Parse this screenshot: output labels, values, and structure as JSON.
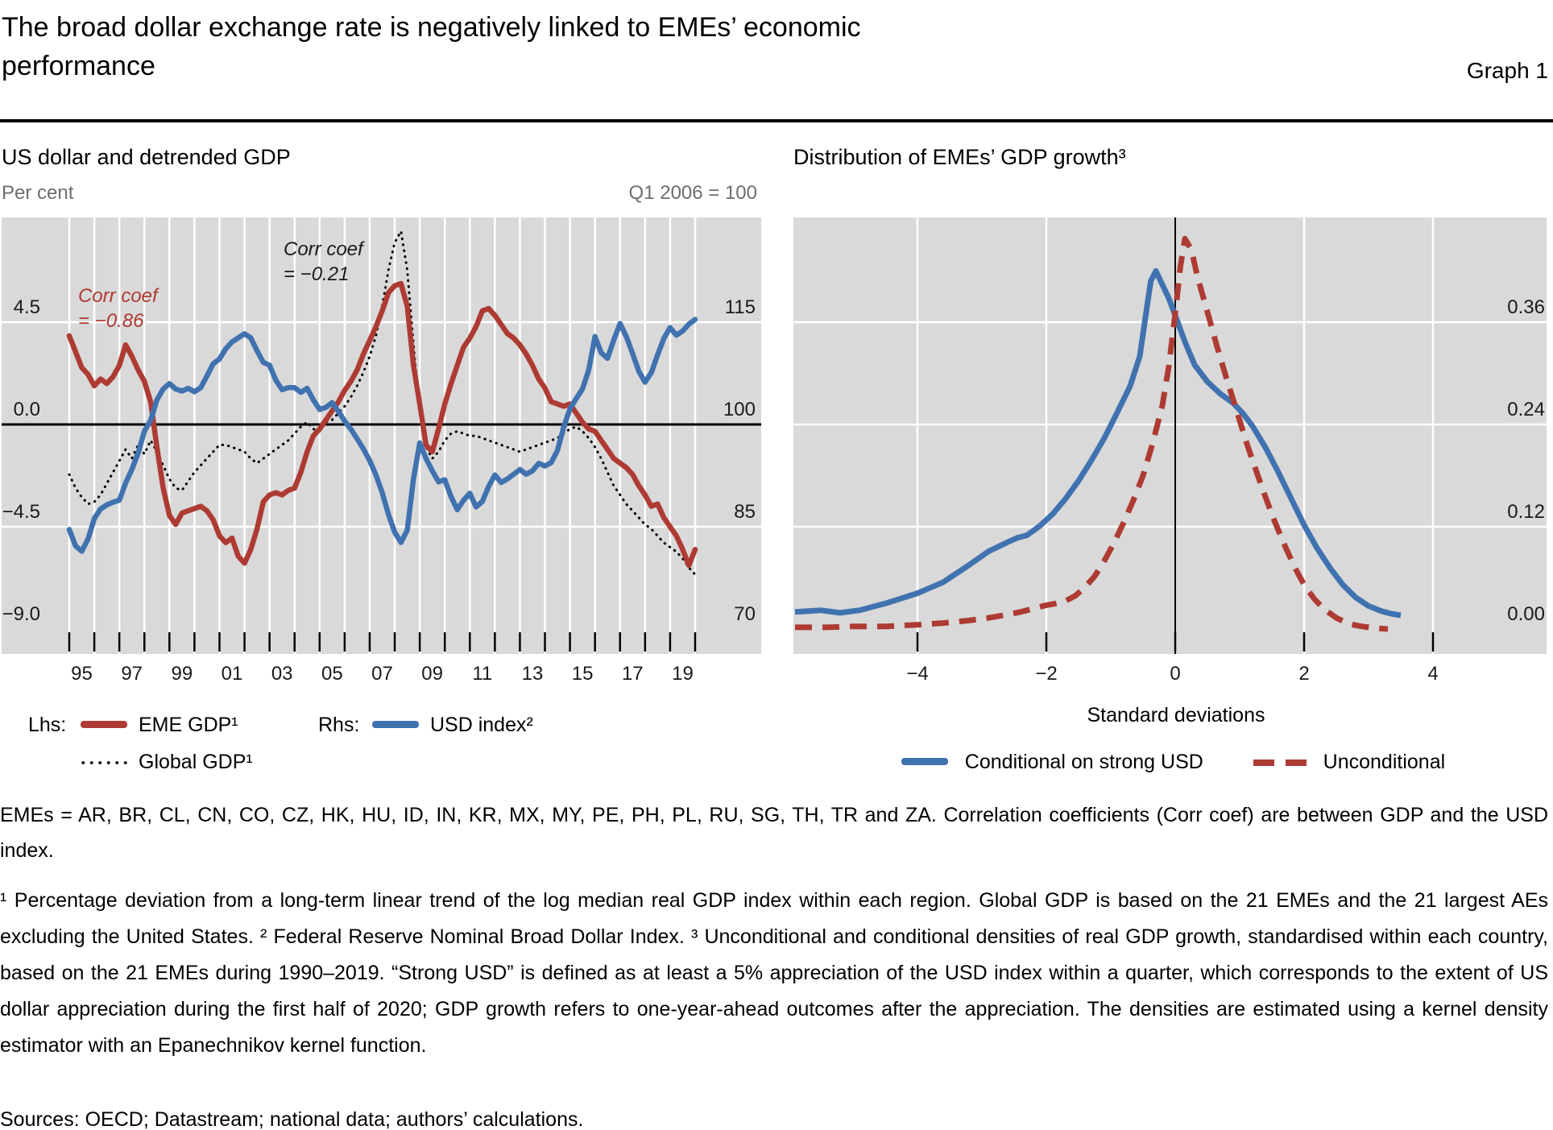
{
  "title": {
    "line1": "The broad dollar exchange rate is negatively linked to EMEs’ economic",
    "line2": "performance",
    "graph_label": "Graph 1"
  },
  "left_panel": {
    "title": "US dollar and detrended GDP",
    "unit_left": "Per cent",
    "unit_right": "Q1 2006 = 100",
    "annotation_red_line1": "Corr coef",
    "annotation_red_line2": "= −0.86",
    "annotation_black_line1": "Corr coef",
    "annotation_black_line2": "= −0.21",
    "legend": {
      "lhs_label": "Lhs:",
      "eme_label": "EME GDP¹",
      "rhs_label": "Rhs:",
      "usd_label": "USD index²",
      "global_label": "Global GDP¹"
    }
  },
  "right_panel": {
    "title": "Distribution of EMEs’ GDP growth³",
    "xlabel": "Standard deviations",
    "legend": {
      "conditional_label": "Conditional on strong USD",
      "unconditional_label": "Unconditional"
    }
  },
  "footnotes": {
    "para1": "EMEs = AR, BR, CL, CN, CO, CZ, HK, HU, ID, IN, KR, MX, MY, PE, PH, PL, RU, SG, TH, TR and ZA. Correlation coefficients (Corr coef) are between GDP and the USD index.",
    "para2": "¹  Percentage deviation from a long-term linear trend of the log median real GDP index within each region. Global GDP is based on the 21 EMEs and the 21 largest AEs excluding the United States.     ²  Federal Reserve Nominal Broad Dollar Index.     ³  Unconditional and conditional densities of real GDP growth, standardised within each country, based on the 21 EMEs during 1990–2019. “Strong USD” is defined as at least a 5% appreciation of the USD index within a quarter, which corresponds to the extent of US dollar appreciation during the first half of 2020; GDP growth refers to one-year-ahead outcomes after the appreciation. The densities are estimated using a kernel density estimator with an Epanechnikov kernel function.",
    "sources": "Sources: OECD; Datastream; national data; authors’ calculations."
  },
  "colors": {
    "red": "#AE3B33",
    "blue": "#4072B0",
    "black": "#000000",
    "plot_bg": "#D9D9D9",
    "gridline": "#FFFFFF",
    "muted_text": "#6e6e6e"
  },
  "chart_data": [
    {
      "type": "line",
      "title": "US dollar and detrended GDP",
      "x_start": 1995.0,
      "x_step": 0.25,
      "x_tick_years_start": 1995,
      "x_tick_years_end": 2020,
      "x_tick_labels": [
        "95",
        "97",
        "99",
        "01",
        "03",
        "05",
        "07",
        "09",
        "11",
        "13",
        "15",
        "17",
        "19"
      ],
      "y_left": {
        "label": "Per cent",
        "tick_labels": [
          "4.5",
          "0.0",
          "−4.5",
          "−9.0"
        ],
        "tick_values": [
          4.5,
          0.0,
          -4.5,
          -9.0
        ],
        "range": [
          -9,
          9
        ]
      },
      "y_right": {
        "label": "Q1 2006 = 100",
        "tick_labels": [
          "115",
          "100",
          "85",
          "70"
        ],
        "tick_values": [
          115,
          100,
          85,
          70
        ],
        "range": [
          70,
          130
        ]
      },
      "series": [
        {
          "name": "Global GDP",
          "axis": "left",
          "style": "dotted",
          "color": "black",
          "values": [
            -2.2,
            -2.8,
            -3.2,
            -3.5,
            -3.4,
            -3.1,
            -2.6,
            -2.1,
            -1.6,
            -1.1,
            -1.5,
            -0.9,
            -1.3,
            -0.7,
            -1.2,
            -1.8,
            -2.4,
            -2.8,
            -2.9,
            -2.5,
            -2.1,
            -1.8,
            -1.5,
            -1.2,
            -0.9,
            -0.9,
            -1.0,
            -1.1,
            -1.2,
            -1.5,
            -1.7,
            -1.5,
            -1.3,
            -1.1,
            -0.9,
            -0.7,
            -0.4,
            -0.1,
            0.1,
            -0.2,
            -0.3,
            0.1,
            0.2,
            0.5,
            0.8,
            1.2,
            1.7,
            2.3,
            3.0,
            3.9,
            5.2,
            6.8,
            8.0,
            8.5,
            6.8,
            3.5,
            0.5,
            -1.0,
            -1.5,
            -1.2,
            -0.7,
            -0.4,
            -0.3,
            -0.4,
            -0.5,
            -0.5,
            -0.6,
            -0.7,
            -0.8,
            -0.9,
            -1.0,
            -1.1,
            -1.2,
            -1.1,
            -1.0,
            -0.9,
            -0.8,
            -0.7,
            -0.6,
            -0.4,
            -0.2,
            -0.1,
            -0.3,
            -0.6,
            -1.0,
            -1.5,
            -2.1,
            -2.7,
            -3.1,
            -3.5,
            -3.8,
            -4.1,
            -4.4,
            -4.6,
            -4.9,
            -5.2,
            -5.4,
            -5.6,
            -5.9,
            -6.3,
            -6.6
          ]
        },
        {
          "name": "EME GDP",
          "axis": "left",
          "style": "solid",
          "color": "red",
          "values": [
            3.9,
            3.2,
            2.5,
            2.2,
            1.7,
            2.0,
            1.8,
            2.1,
            2.6,
            3.5,
            3.0,
            2.4,
            1.9,
            1.0,
            -1.0,
            -2.8,
            -4.0,
            -4.4,
            -3.9,
            -3.8,
            -3.7,
            -3.6,
            -3.8,
            -4.2,
            -4.9,
            -5.2,
            -5.0,
            -5.8,
            -6.1,
            -5.5,
            -4.6,
            -3.4,
            -3.1,
            -3.0,
            -3.1,
            -2.9,
            -2.8,
            -2.1,
            -1.2,
            -0.5,
            -0.2,
            0.2,
            0.6,
            1.0,
            1.5,
            1.9,
            2.4,
            3.1,
            3.7,
            4.3,
            5.0,
            5.8,
            6.1,
            6.2,
            5.2,
            2.6,
            0.9,
            -0.9,
            -1.2,
            -0.2,
            0.9,
            1.8,
            2.6,
            3.4,
            3.8,
            4.3,
            5.0,
            5.1,
            4.8,
            4.4,
            4.0,
            3.8,
            3.5,
            3.1,
            2.6,
            2.0,
            1.6,
            1.0,
            0.9,
            0.8,
            0.9,
            0.5,
            0.1,
            -0.2,
            -0.3,
            -0.7,
            -1.1,
            -1.5,
            -1.7,
            -1.9,
            -2.2,
            -2.7,
            -3.1,
            -3.6,
            -3.5,
            -4.1,
            -4.5,
            -4.9,
            -5.5,
            -6.2,
            -5.5
          ]
        },
        {
          "name": "USD index",
          "axis": "right",
          "style": "solid",
          "color": "blue",
          "values": [
            84.6,
            82.2,
            81.4,
            83.2,
            86.2,
            87.6,
            88.2,
            88.6,
            88.9,
            91.4,
            93.4,
            95.8,
            99.0,
            100.6,
            103.6,
            105.2,
            106.0,
            105.2,
            104.9,
            105.3,
            104.8,
            105.4,
            107.1,
            108.9,
            109.6,
            111.1,
            112.1,
            112.7,
            113.3,
            112.7,
            110.8,
            109.1,
            108.7,
            106.5,
            105.1,
            105.4,
            105.4,
            104.7,
            105.3,
            103.6,
            102.2,
            102.5,
            103.2,
            101.9,
            100.5,
            99.3,
            97.9,
            96.4,
            94.7,
            92.6,
            90.0,
            86.8,
            84.2,
            82.7,
            84.5,
            92.0,
            97.3,
            95.0,
            93.2,
            91.6,
            91.9,
            89.4,
            87.5,
            88.9,
            89.9,
            87.9,
            88.7,
            90.9,
            92.6,
            91.5,
            92.0,
            92.7,
            93.4,
            92.7,
            93.2,
            94.3,
            93.9,
            94.4,
            96.2,
            99.6,
            102.3,
            103.8,
            105.2,
            108.0,
            112.9,
            110.5,
            109.7,
            112.4,
            114.8,
            112.9,
            110.4,
            107.8,
            106.2,
            107.6,
            110.2,
            112.6,
            114.2,
            113.1,
            113.7,
            114.7,
            115.4
          ]
        }
      ]
    },
    {
      "type": "line",
      "title": "Distribution of EMEs’ GDP growth",
      "xlabel": "Standard deviations",
      "x_ticks": [
        -4,
        -2,
        0,
        2,
        4
      ],
      "x_tick_labels": [
        "−4",
        "−2",
        "0",
        "2",
        "4"
      ],
      "x_range": [
        -5.9,
        5.8
      ],
      "y_right": {
        "tick_labels": [
          "0.36",
          "0.24",
          "0.12",
          "0.00"
        ],
        "tick_values": [
          0.36,
          0.24,
          0.12,
          0.0
        ],
        "range": [
          0,
          0.48
        ]
      },
      "series": [
        {
          "name": "Conditional on strong USD",
          "style": "solid",
          "color": "blue",
          "points": [
            [
              -5.9,
              0.02
            ],
            [
              -5.5,
              0.022
            ],
            [
              -5.2,
              0.019
            ],
            [
              -4.9,
              0.022
            ],
            [
              -4.5,
              0.03
            ],
            [
              -4.0,
              0.042
            ],
            [
              -3.6,
              0.055
            ],
            [
              -3.2,
              0.075
            ],
            [
              -2.9,
              0.091
            ],
            [
              -2.6,
              0.102
            ],
            [
              -2.45,
              0.107
            ],
            [
              -2.3,
              0.11
            ],
            [
              -2.1,
              0.121
            ],
            [
              -1.9,
              0.135
            ],
            [
              -1.7,
              0.153
            ],
            [
              -1.5,
              0.174
            ],
            [
              -1.3,
              0.198
            ],
            [
              -1.1,
              0.224
            ],
            [
              -0.9,
              0.254
            ],
            [
              -0.7,
              0.285
            ],
            [
              -0.55,
              0.32
            ],
            [
              -0.45,
              0.372
            ],
            [
              -0.38,
              0.408
            ],
            [
              -0.3,
              0.42
            ],
            [
              -0.2,
              0.404
            ],
            [
              -0.1,
              0.388
            ],
            [
              0.0,
              0.368
            ],
            [
              0.15,
              0.337
            ],
            [
              0.3,
              0.31
            ],
            [
              0.5,
              0.29
            ],
            [
              0.7,
              0.276
            ],
            [
              0.9,
              0.265
            ],
            [
              1.05,
              0.253
            ],
            [
              1.2,
              0.238
            ],
            [
              1.4,
              0.213
            ],
            [
              1.6,
              0.184
            ],
            [
              1.8,
              0.153
            ],
            [
              2.0,
              0.122
            ],
            [
              2.2,
              0.095
            ],
            [
              2.4,
              0.072
            ],
            [
              2.6,
              0.052
            ],
            [
              2.8,
              0.037
            ],
            [
              3.0,
              0.027
            ],
            [
              3.2,
              0.021
            ],
            [
              3.35,
              0.018
            ],
            [
              3.5,
              0.016
            ]
          ]
        },
        {
          "name": "Unconditional",
          "style": "dashed",
          "color": "red",
          "points": [
            [
              -5.9,
              0.002
            ],
            [
              -5.4,
              0.002
            ],
            [
              -5.0,
              0.003
            ],
            [
              -4.5,
              0.003
            ],
            [
              -4.0,
              0.005
            ],
            [
              -3.6,
              0.007
            ],
            [
              -3.2,
              0.01
            ],
            [
              -2.9,
              0.013
            ],
            [
              -2.6,
              0.017
            ],
            [
              -2.4,
              0.02
            ],
            [
              -2.2,
              0.024
            ],
            [
              -2.0,
              0.028
            ],
            [
              -1.85,
              0.03
            ],
            [
              -1.7,
              0.033
            ],
            [
              -1.55,
              0.039
            ],
            [
              -1.4,
              0.049
            ],
            [
              -1.25,
              0.062
            ],
            [
              -1.1,
              0.08
            ],
            [
              -0.95,
              0.101
            ],
            [
              -0.8,
              0.125
            ],
            [
              -0.65,
              0.151
            ],
            [
              -0.5,
              0.18
            ],
            [
              -0.35,
              0.218
            ],
            [
              -0.2,
              0.262
            ],
            [
              -0.1,
              0.308
            ],
            [
              0.0,
              0.37
            ],
            [
              0.08,
              0.425
            ],
            [
              0.15,
              0.458
            ],
            [
              0.25,
              0.445
            ],
            [
              0.35,
              0.412
            ],
            [
              0.5,
              0.372
            ],
            [
              0.65,
              0.331
            ],
            [
              0.8,
              0.293
            ],
            [
              0.95,
              0.257
            ],
            [
              1.1,
              0.22
            ],
            [
              1.25,
              0.187
            ],
            [
              1.4,
              0.155
            ],
            [
              1.55,
              0.125
            ],
            [
              1.7,
              0.098
            ],
            [
              1.85,
              0.073
            ],
            [
              2.0,
              0.052
            ],
            [
              2.15,
              0.036
            ],
            [
              2.3,
              0.024
            ],
            [
              2.5,
              0.013
            ],
            [
              2.7,
              0.006
            ],
            [
              2.9,
              0.003
            ],
            [
              3.1,
              0.001
            ],
            [
              3.3,
              0.0
            ]
          ]
        }
      ]
    }
  ]
}
